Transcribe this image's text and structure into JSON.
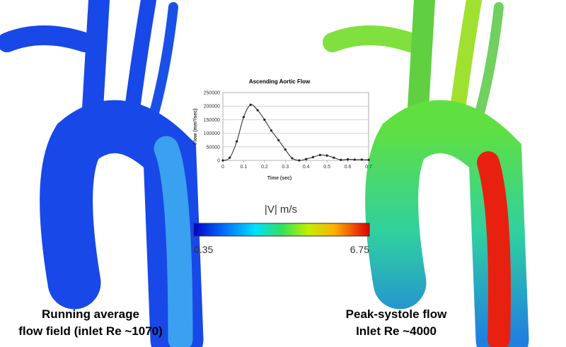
{
  "chart_data": {
    "type": "line",
    "title": "Ascending Aortic Flow",
    "xlabel": "Time (sec)",
    "ylabel": "Flow (mm³/sec)",
    "x": [
      0,
      0.033,
      0.067,
      0.1,
      0.133,
      0.167,
      0.2,
      0.233,
      0.267,
      0.3,
      0.333,
      0.367,
      0.4,
      0.433,
      0.467,
      0.5,
      0.533,
      0.567,
      0.6,
      0.633,
      0.667,
      0.7
    ],
    "values": [
      0,
      10000,
      70000,
      160000,
      205000,
      185000,
      150000,
      110000,
      75000,
      40000,
      8000,
      0,
      5000,
      12000,
      20000,
      18000,
      10000,
      2000,
      4000,
      3000,
      3000,
      2000
    ],
    "color": "#222222",
    "xlim": [
      0,
      0.7
    ],
    "xticks": [
      0,
      0.1,
      0.2,
      0.3,
      0.4,
      0.5,
      0.6,
      0.7
    ],
    "ylim": [
      0,
      250000
    ],
    "yticks": [
      0,
      50000,
      100000,
      150000,
      200000,
      250000
    ],
    "grid": true
  },
  "colorbar": {
    "label": "|V|  m/s",
    "min": 0.35,
    "max": 6.75
  },
  "captions": {
    "left": [
      "Running average",
      "flow field (inlet Re ~1070)"
    ],
    "right": [
      "Peak-systole flow",
      "Inlet Re ~4000"
    ]
  }
}
